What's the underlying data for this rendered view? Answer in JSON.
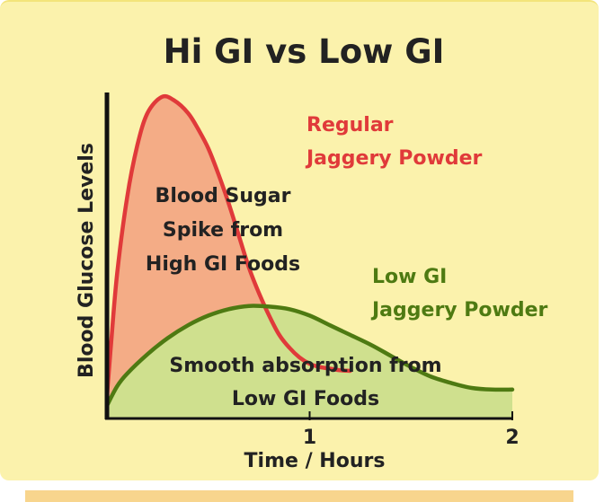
{
  "colors": {
    "background": "#fbf2ac",
    "high_gi_line": "#e03a3a",
    "high_gi_fill": "#f4ac86",
    "low_gi_line": "#4e7a12",
    "low_gi_fill": "#cfe08e",
    "text": "#222222",
    "bottom_strip": "#f8d58d"
  },
  "chart_data": {
    "type": "area",
    "title": "Hi GI vs Low GI",
    "xlabel": "Time / Hours",
    "ylabel": "Blood Glucose Levels",
    "xlim": [
      0,
      2
    ],
    "ylim": [
      0,
      1
    ],
    "xticks": [
      1,
      2
    ],
    "xtick_labels": [
      "1",
      "2"
    ],
    "y_ticks_shown": false,
    "grid": false,
    "series": [
      {
        "name": "Regular Jaggery Powder",
        "color": "#e03a3a",
        "fill": "#f4ac86",
        "x": [
          0,
          0.02,
          0.05,
          0.1,
          0.15,
          0.2,
          0.27,
          0.33,
          0.4,
          0.45,
          0.5,
          0.55,
          0.6,
          0.65,
          0.7,
          0.75,
          0.8,
          0.85,
          0.9,
          0.95,
          1.0,
          1.05,
          1.1,
          1.15,
          1.2
        ],
        "y": [
          0.07,
          0.23,
          0.45,
          0.69,
          0.85,
          0.95,
          1.0,
          0.99,
          0.95,
          0.9,
          0.84,
          0.76,
          0.67,
          0.57,
          0.47,
          0.39,
          0.32,
          0.26,
          0.22,
          0.19,
          0.17,
          0.16,
          0.155,
          0.15,
          0.148
        ]
      },
      {
        "name": "Low GI Jaggery Powder",
        "color": "#4e7a12",
        "fill": "#cfe08e",
        "x": [
          0,
          0.05,
          0.1,
          0.2,
          0.3,
          0.4,
          0.5,
          0.6,
          0.7,
          0.8,
          0.9,
          1.0,
          1.1,
          1.2,
          1.3,
          1.4,
          1.5,
          1.6,
          1.7,
          1.8,
          1.9,
          2.0
        ],
        "y": [
          0.04,
          0.1,
          0.14,
          0.2,
          0.25,
          0.29,
          0.32,
          0.34,
          0.35,
          0.348,
          0.34,
          0.32,
          0.29,
          0.26,
          0.23,
          0.195,
          0.16,
          0.13,
          0.11,
          0.095,
          0.09,
          0.09
        ]
      }
    ],
    "annotations": {
      "high_gi_area_lines": [
        "Blood Sugar",
        "Spike from",
        "High GI Foods"
      ],
      "low_gi_area_lines": [
        "Smooth absorption from",
        "Low GI Foods"
      ],
      "high_gi_legend_lines": [
        "Regular",
        "Jaggery Powder"
      ],
      "low_gi_legend_lines": [
        "Low GI",
        "Jaggery Powder"
      ]
    }
  }
}
